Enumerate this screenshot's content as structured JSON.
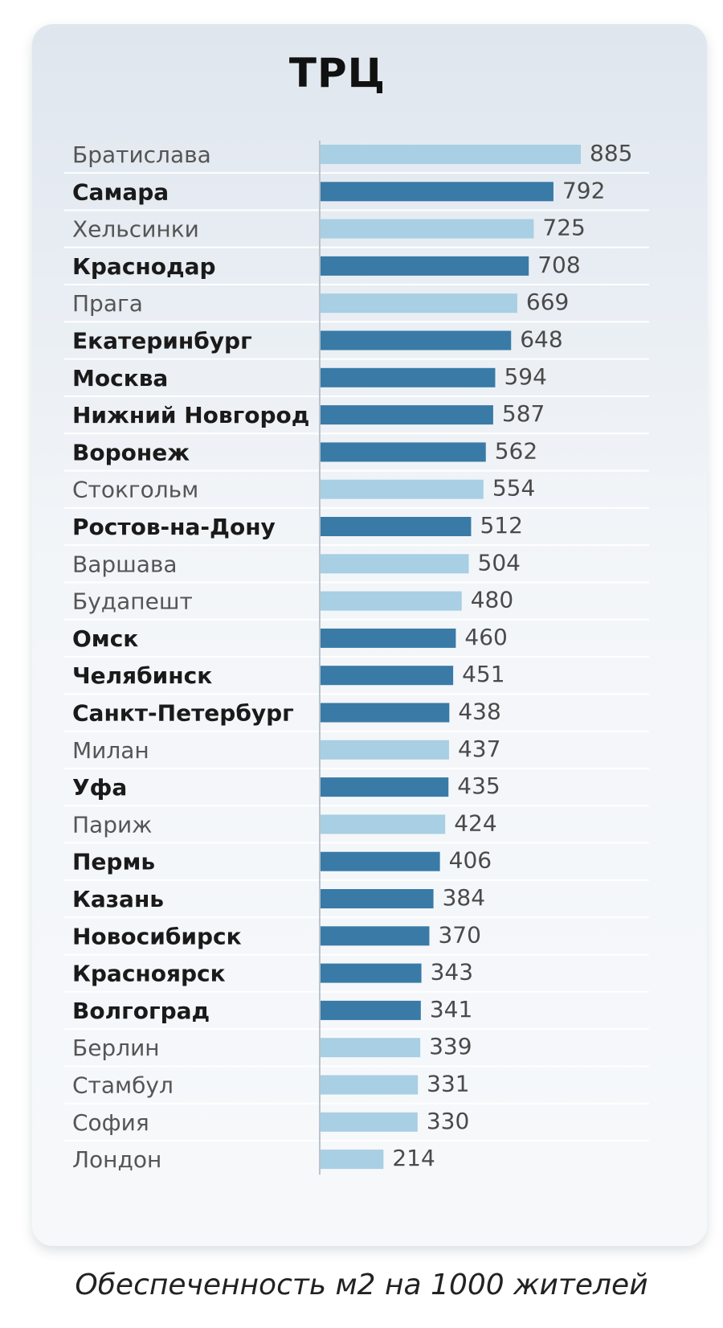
{
  "chart_data": {
    "type": "bar",
    "orientation": "horizontal",
    "title": "ТРЦ",
    "footnote": "Обеспеченность м2 на 1000 жителей",
    "xlim": [
      0,
      885
    ],
    "colors": {
      "russia": "#3a7aa6",
      "europe": "#a8cfe3",
      "axis": "#b9c3cc",
      "separator": "#ffffff"
    },
    "rows": [
      {
        "city": "Братислава",
        "value": 885,
        "group": "europe"
      },
      {
        "city": "Самара",
        "value": 792,
        "group": "russia"
      },
      {
        "city": "Хельсинки",
        "value": 725,
        "group": "europe"
      },
      {
        "city": "Краснодар",
        "value": 708,
        "group": "russia"
      },
      {
        "city": "Прага",
        "value": 669,
        "group": "europe"
      },
      {
        "city": "Екатеринбург",
        "value": 648,
        "group": "russia"
      },
      {
        "city": "Москва",
        "value": 594,
        "group": "russia"
      },
      {
        "city": "Нижний Новгород",
        "value": 587,
        "group": "russia"
      },
      {
        "city": "Воронеж",
        "value": 562,
        "group": "russia"
      },
      {
        "city": "Стокгольм",
        "value": 554,
        "group": "europe"
      },
      {
        "city": "Ростов-на-Дону",
        "value": 512,
        "group": "russia"
      },
      {
        "city": "Варшава",
        "value": 504,
        "group": "europe"
      },
      {
        "city": "Будапешт",
        "value": 480,
        "group": "europe"
      },
      {
        "city": "Омск",
        "value": 460,
        "group": "russia"
      },
      {
        "city": "Челябинск",
        "value": 451,
        "group": "russia"
      },
      {
        "city": "Санкт-Петербург",
        "value": 438,
        "group": "russia"
      },
      {
        "city": "Милан",
        "value": 437,
        "group": "europe"
      },
      {
        "city": "Уфа",
        "value": 435,
        "group": "russia"
      },
      {
        "city": "Париж",
        "value": 424,
        "group": "europe"
      },
      {
        "city": "Пермь",
        "value": 406,
        "group": "russia"
      },
      {
        "city": "Казань",
        "value": 384,
        "group": "russia"
      },
      {
        "city": "Новосибирск",
        "value": 370,
        "group": "russia"
      },
      {
        "city": "Красноярск",
        "value": 343,
        "group": "russia"
      },
      {
        "city": "Волгоград",
        "value": 341,
        "group": "russia"
      },
      {
        "city": "Берлин",
        "value": 339,
        "group": "europe"
      },
      {
        "city": "Стамбул",
        "value": 331,
        "group": "europe"
      },
      {
        "city": "София",
        "value": 330,
        "group": "europe"
      },
      {
        "city": "Лондон",
        "value": 214,
        "group": "europe"
      }
    ]
  }
}
